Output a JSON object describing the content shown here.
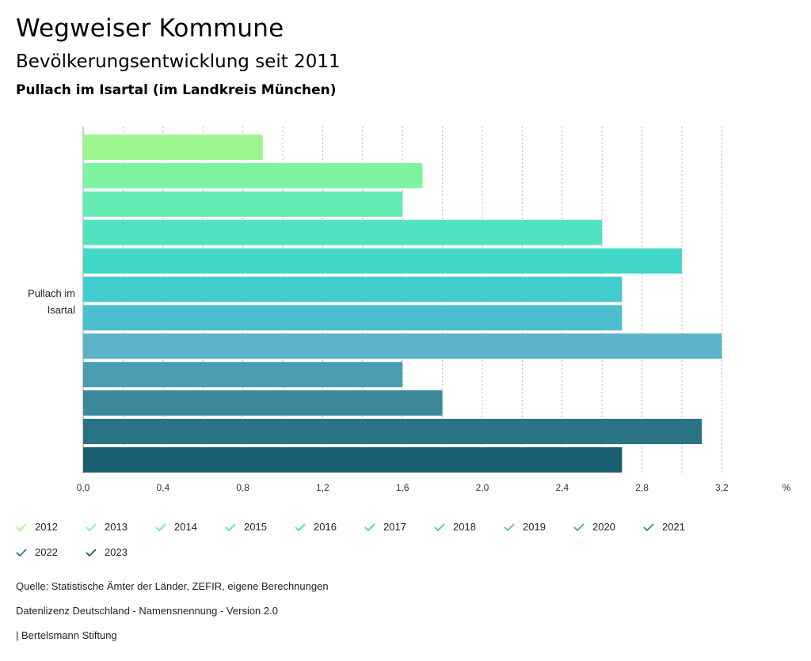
{
  "header": {
    "title": "Wegweiser Kommune",
    "subtitle": "Bevölkerungsentwicklung seit 2011",
    "region": "Pullach im Isartal (im Landkreis München)"
  },
  "chart_data": {
    "type": "bar",
    "orientation": "horizontal",
    "category_label": [
      "Pullach im",
      "Isartal"
    ],
    "categories": [
      "Pullach im Isartal"
    ],
    "series": [
      {
        "name": "2012",
        "values": [
          0.9
        ],
        "color": "#9cf88e"
      },
      {
        "name": "2013",
        "values": [
          1.7
        ],
        "color": "#80f2a0"
      },
      {
        "name": "2014",
        "values": [
          1.6
        ],
        "color": "#63ebb1"
      },
      {
        "name": "2015",
        "values": [
          2.6
        ],
        "color": "#51e2c0"
      },
      {
        "name": "2016",
        "values": [
          3.0
        ],
        "color": "#42d8c9"
      },
      {
        "name": "2017",
        "values": [
          2.7
        ],
        "color": "#42ccce"
      },
      {
        "name": "2018",
        "values": [
          2.7
        ],
        "color": "#4cbfcf"
      },
      {
        "name": "2019",
        "values": [
          3.2
        ],
        "color": "#5db3c7"
      },
      {
        "name": "2020",
        "values": [
          1.6
        ],
        "color": "#4b9eb2"
      },
      {
        "name": "2021",
        "values": [
          1.8
        ],
        "color": "#3a8a9c"
      },
      {
        "name": "2022",
        "values": [
          3.1
        ],
        "color": "#2a7385"
      },
      {
        "name": "2023",
        "values": [
          2.7
        ],
        "color": "#185e6f"
      }
    ],
    "xlim": [
      0,
      3.5
    ],
    "xticks": [
      "0,0",
      "0,4",
      "0,8",
      "1,2",
      "1,6",
      "2,0",
      "2,4",
      "2,8",
      "3,2"
    ],
    "xtick_values": [
      0,
      0.4,
      0.8,
      1.2,
      1.6,
      2.0,
      2.4,
      2.8,
      3.2
    ],
    "unit": "%",
    "grid": "dotted vertical"
  },
  "footer": {
    "source": "Quelle: Statistische Ämter der Länder, ZEFIR, eigene Berechnungen",
    "license": "Datenlizenz Deutschland - Namensnennung - Version 2.0",
    "publisher": "| Bertelsmann Stiftung"
  }
}
